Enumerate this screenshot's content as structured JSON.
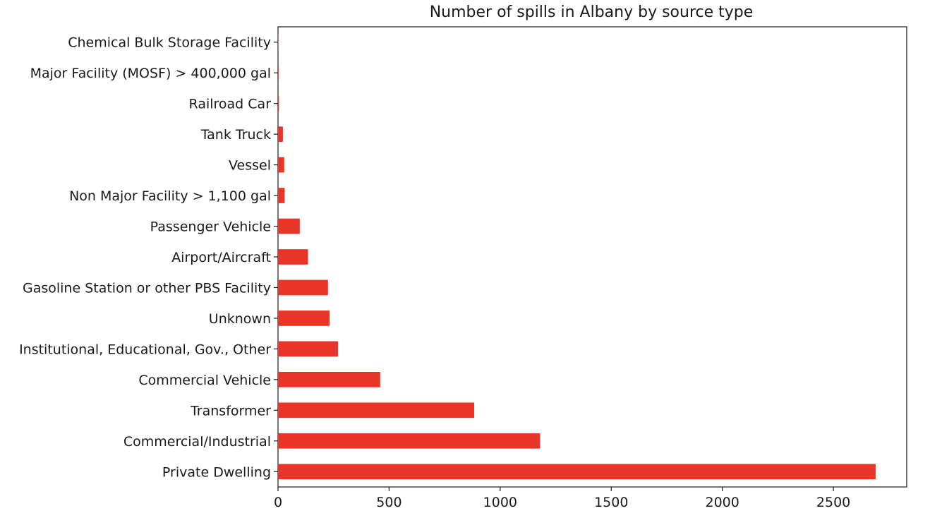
{
  "chart_data": {
    "type": "bar",
    "orientation": "horizontal",
    "title": "Number of spills in Albany by source type",
    "xlabel": "",
    "ylabel": "",
    "categories": [
      "Private Dwelling",
      "Commercial/Industrial",
      "Transformer",
      "Commercial Vehicle",
      "Institutional, Educational, Gov., Other",
      "Unknown",
      "Gasoline Station or other PBS Facility",
      "Airport/Aircraft",
      "Passenger Vehicle",
      "Non Major Facility > 1,100 gal",
      "Vessel",
      "Tank Truck",
      "Railroad Car",
      "Major Facility (MOSF) > 400,000 gal",
      "Chemical Bulk Storage Facility"
    ],
    "values": [
      2690,
      1180,
      883,
      460,
      270,
      232,
      225,
      135,
      98,
      30,
      28,
      22,
      4,
      3,
      1
    ],
    "xlim": [
      0,
      2830
    ],
    "xticks": [
      0,
      500,
      1000,
      1500,
      2000,
      2500
    ],
    "color": "#e8352a",
    "grid": false,
    "legend": "none"
  }
}
